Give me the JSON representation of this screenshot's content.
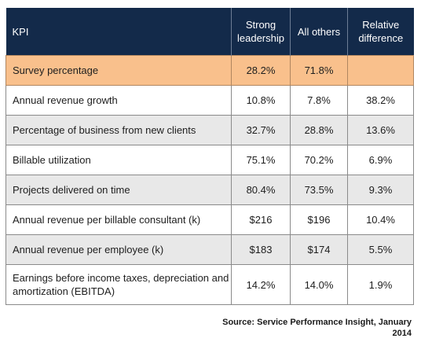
{
  "table": {
    "headers": {
      "kpi": "KPI",
      "strong_line1": "Strong",
      "strong_line2": "leadership",
      "others": "All others",
      "relative_line1": "Relative",
      "relative_line2": "difference"
    },
    "rows": [
      {
        "kpi": "Survey percentage",
        "strong": "28.2%",
        "others": "71.8%",
        "relative": ""
      },
      {
        "kpi": "Annual revenue growth",
        "strong": "10.8%",
        "others": "7.8%",
        "relative": "38.2%"
      },
      {
        "kpi": "Percentage of business from new clients",
        "strong": "32.7%",
        "others": "28.8%",
        "relative": "13.6%"
      },
      {
        "kpi": "Billable utilization",
        "strong": "75.1%",
        "others": "70.2%",
        "relative": "6.9%"
      },
      {
        "kpi": "Projects delivered on time",
        "strong": "80.4%",
        "others": "73.5%",
        "relative": "9.3%"
      },
      {
        "kpi": "Annual revenue per billable consultant (k)",
        "strong": "$216",
        "others": "$196",
        "relative": "10.4%"
      },
      {
        "kpi": "Annual revenue per employee (k)",
        "strong": "$183",
        "others": "$174",
        "relative": "5.5%"
      },
      {
        "kpi": "Earnings before income taxes, depreciation and amortization (EBITDA)",
        "strong": "14.2%",
        "others": "14.0%",
        "relative": "1.9%"
      }
    ]
  },
  "source": {
    "line1": "Source: Service Performance Insight, January",
    "line2": "2014"
  },
  "colors": {
    "header_bg": "#132a4a",
    "highlight_row": "#f9c08c",
    "alt_row": "#e8e8e8"
  }
}
